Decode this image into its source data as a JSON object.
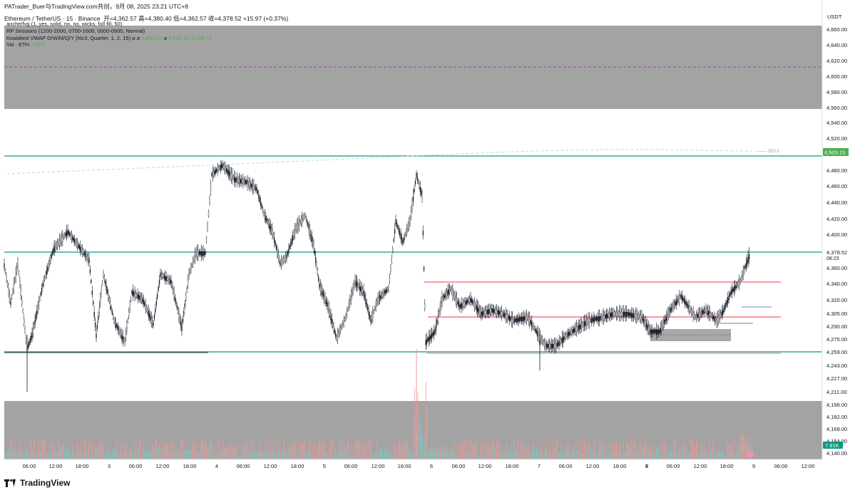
{
  "header": {
    "share_line": "PATrader_Buer与TradingView.com共创，9月 08, 2025 23:21 UTC+8",
    "symbol": "Ethereum / TetherUS · 15 · Binance",
    "ohlc": "开=4,362.57  高=4,380.40  低=4,362.57  收=4,378.52  +15.97 (+0.37%)"
  },
  "legend": {
    "fvg": "anche/fvg (1, yes, solid, no, no, wicks, full fill, 50)",
    "sessions": "RP Sessions (1200-2000, 0700-1600, 0000-0900, Normal)",
    "vwap_label": "Koalafied VWAP D/W/M/Q/Y  (hlc3, Quarter, 1, 2, 15)  ⌀  ⌀",
    "vwap_v1": "3,861.47",
    "vwap_sep": "⌀",
    "vwap_v2": "4,503.15",
    "vwap_v3": "3,199.79",
    "vol_label": "Vol · ETH",
    "vol_value": "7.91K"
  },
  "currency": "USDT",
  "price_axis": {
    "ticks": [
      "4,660.00",
      "4,640.00",
      "4,620.00",
      "4,600.00",
      "4,580.00",
      "4,560.00",
      "4,540.00",
      "4,520.00",
      "4,500.00",
      "4,480.00",
      "4,460.00",
      "4,440.00",
      "4,420.00",
      "4,400.00",
      "4,378.52",
      "4,360.00",
      "4,340.00",
      "4,320.00",
      "4,305.00",
      "4,290.00",
      "4,275.00",
      "4,259.00",
      "4,243.00",
      "4,227.00",
      "4,211.00",
      "4,196.00",
      "4,182.00",
      "4,168.00",
      "4,154.00",
      "4,140.00"
    ],
    "badge_top": "4,503.15",
    "badge_last": "4,378.52",
    "countdown": "08:23",
    "badge_vol": "7.91K",
    "vwap_tag": "SD+1"
  },
  "time_axis": {
    "labels": [
      "06:00",
      "12:00",
      "18:00",
      "3",
      "06:00",
      "12:00",
      "18:00",
      "4",
      "06:00",
      "12:00",
      "18:00",
      "5",
      "06:00",
      "12:00",
      "18:00",
      "6",
      "06:00",
      "12:00",
      "18:00",
      "7",
      "06:00",
      "12:00",
      "18:00",
      "8",
      "06:00",
      "12:00",
      "18:00",
      "9",
      "06:00",
      "12:00"
    ]
  },
  "colors": {
    "green_line": "#089981",
    "red_line": "#f23645",
    "gray_zone": "#a3a3a3",
    "vwap_dash": "#b2dfdb",
    "purple_dash": "#9c27b0",
    "badge_green": "#4caf50"
  },
  "branding": "TradingView"
}
